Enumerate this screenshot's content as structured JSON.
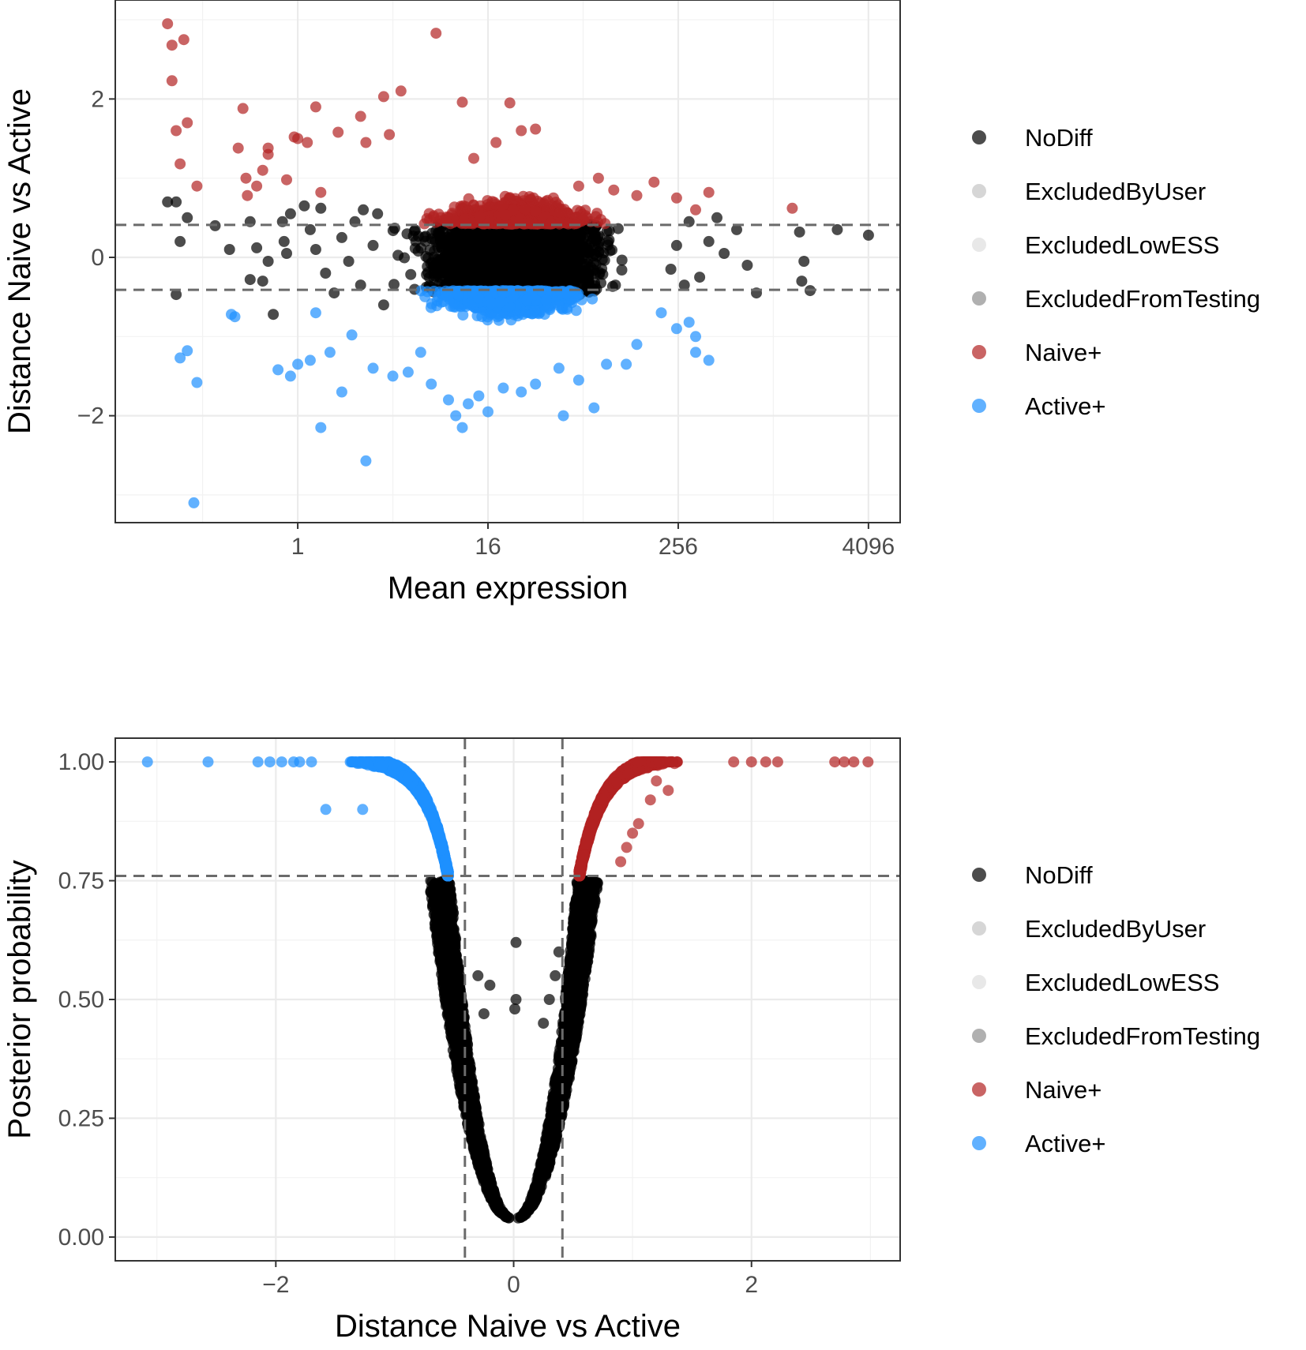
{
  "chart_data": [
    {
      "type": "scatter",
      "id": "ma-plot",
      "xlabel": "Mean expression",
      "ylabel": "Distance Naive vs Active",
      "x_scale": "log2",
      "xlim": [
        0.07,
        6500
      ],
      "ylim": [
        -3.35,
        3.25
      ],
      "x_ticks": [
        1,
        16,
        256,
        4096
      ],
      "x_tick_labels": [
        "1",
        "16",
        "256",
        "4096"
      ],
      "y_ticks": [
        -2,
        0,
        2
      ],
      "y_tick_labels": [
        "−2",
        "0",
        "2"
      ],
      "threshold_y": [
        0.41,
        -0.41
      ],
      "legend": [
        {
          "label": "NoDiff",
          "color": "#000000"
        },
        {
          "label": "ExcludedByUser",
          "color": "#c4c4c4"
        },
        {
          "label": "ExcludedLowESS",
          "color": "#dedede"
        },
        {
          "label": "ExcludedFromTesting",
          "color": "#8f8f8f"
        },
        {
          "label": "Naive+",
          "color": "#b22222"
        },
        {
          "label": "Active+",
          "color": "#1e90ff"
        }
      ],
      "series": [
        {
          "name": "NoDiff",
          "color": "#000000",
          "points": [
            [
              0.15,
              0.7
            ],
            [
              0.17,
              0.7
            ],
            [
              0.2,
              0.5
            ],
            [
              0.18,
              0.2
            ],
            [
              0.17,
              -0.47
            ],
            [
              0.3,
              0.4
            ],
            [
              0.37,
              0.1
            ],
            [
              0.5,
              0.45
            ],
            [
              0.55,
              0.12
            ],
            [
              0.5,
              -0.28
            ],
            [
              0.6,
              -0.3
            ],
            [
              0.65,
              -0.05
            ],
            [
              0.7,
              -0.72
            ],
            [
              0.8,
              0.45
            ],
            [
              0.82,
              0.2
            ],
            [
              0.85,
              0.05
            ],
            [
              0.9,
              0.55
            ],
            [
              1.1,
              0.65
            ],
            [
              1.2,
              0.35
            ],
            [
              1.3,
              0.1
            ],
            [
              1.4,
              0.62
            ],
            [
              1.5,
              -0.2
            ],
            [
              1.7,
              -0.45
            ],
            [
              1.9,
              0.25
            ],
            [
              2.1,
              -0.05
            ],
            [
              2.3,
              0.45
            ],
            [
              2.5,
              -0.35
            ],
            [
              2.6,
              0.6
            ],
            [
              3.2,
              0.55
            ],
            [
              3.5,
              -0.6
            ],
            [
              3.0,
              0.15
            ],
            [
              4096,
              0.28
            ],
            [
              2600,
              0.35
            ],
            [
              1500,
              0.32
            ],
            [
              1600,
              -0.05
            ],
            [
              1550,
              -0.3
            ],
            [
              1750,
              -0.42
            ],
            [
              800,
              -0.45
            ],
            [
              700,
              -0.1
            ],
            [
              600,
              0.35
            ],
            [
              450,
              0.5
            ],
            [
              400,
              0.2
            ],
            [
              350,
              -0.25
            ],
            [
              500,
              0.05
            ],
            [
              300,
              0.45
            ],
            [
              280,
              -0.35
            ],
            [
              250,
              0.15
            ],
            [
              230,
              -0.15
            ]
          ]
        },
        {
          "name": "Naive+",
          "color": "#b22222",
          "points": [
            [
              0.15,
              2.95
            ],
            [
              0.16,
              2.68
            ],
            [
              0.19,
              2.75
            ],
            [
              0.16,
              2.23
            ],
            [
              0.17,
              1.6
            ],
            [
              0.2,
              1.7
            ],
            [
              0.18,
              1.18
            ],
            [
              0.23,
              0.9
            ],
            [
              0.45,
              1.88
            ],
            [
              0.42,
              1.38
            ],
            [
              0.47,
              1.0
            ],
            [
              0.48,
              0.78
            ],
            [
              0.55,
              0.9
            ],
            [
              0.6,
              1.1
            ],
            [
              0.65,
              1.38
            ],
            [
              0.65,
              1.3
            ],
            [
              0.85,
              0.98
            ],
            [
              0.95,
              1.52
            ],
            [
              1.0,
              1.5
            ],
            [
              1.15,
              1.45
            ],
            [
              1.3,
              1.9
            ],
            [
              1.4,
              0.82
            ],
            [
              1.8,
              1.58
            ],
            [
              2.5,
              1.78
            ],
            [
              2.7,
              1.45
            ],
            [
              3.5,
              2.03
            ],
            [
              4.5,
              2.1
            ],
            [
              3.8,
              1.55
            ],
            [
              7.5,
              2.83
            ],
            [
              11,
              1.96
            ],
            [
              22,
              1.95
            ],
            [
              26,
              1.6
            ],
            [
              32,
              1.62
            ],
            [
              18,
              1.45
            ],
            [
              13,
              1.25
            ],
            [
              80,
              1.0
            ],
            [
              100,
              0.85
            ],
            [
              140,
              0.78
            ],
            [
              180,
              0.95
            ],
            [
              250,
              0.75
            ],
            [
              330,
              0.6
            ],
            [
              400,
              0.82
            ],
            [
              1350,
              0.62
            ],
            [
              60,
              0.9
            ]
          ]
        },
        {
          "name": "Active+",
          "color": "#1e90ff",
          "points": [
            [
              0.2,
              -1.18
            ],
            [
              0.18,
              -1.27
            ],
            [
              0.23,
              -1.58
            ],
            [
              0.22,
              -3.1
            ],
            [
              0.38,
              -0.72
            ],
            [
              0.4,
              -0.75
            ],
            [
              0.75,
              -1.42
            ],
            [
              0.9,
              -1.5
            ],
            [
              1.0,
              -1.35
            ],
            [
              1.2,
              -1.3
            ],
            [
              1.3,
              -0.7
            ],
            [
              1.4,
              -2.15
            ],
            [
              1.6,
              -1.2
            ],
            [
              1.9,
              -1.7
            ],
            [
              2.2,
              -0.98
            ],
            [
              2.7,
              -2.57
            ],
            [
              3.0,
              -1.4
            ],
            [
              4.0,
              -1.5
            ],
            [
              5.0,
              -1.45
            ],
            [
              6.0,
              -1.2
            ],
            [
              7.0,
              -1.6
            ],
            [
              9.0,
              -1.8
            ],
            [
              10,
              -2.0
            ],
            [
              11,
              -2.15
            ],
            [
              12,
              -1.85
            ],
            [
              14,
              -1.75
            ],
            [
              16,
              -1.95
            ],
            [
              20,
              -1.65
            ],
            [
              26,
              -1.7
            ],
            [
              32,
              -1.6
            ],
            [
              45,
              -1.4
            ],
            [
              48,
              -2.0
            ],
            [
              60,
              -1.55
            ],
            [
              75,
              -1.9
            ],
            [
              90,
              -1.35
            ],
            [
              120,
              -1.35
            ],
            [
              140,
              -1.1
            ],
            [
              300,
              -0.82
            ],
            [
              330,
              -1.0
            ],
            [
              330,
              -1.2
            ],
            [
              400,
              -1.3
            ],
            [
              250,
              -0.9
            ],
            [
              200,
              -0.7
            ]
          ]
        }
      ],
      "dense_clouds": [
        {
          "series": "NoDiff",
          "color": "#000000",
          "x_range": [
            3.0,
            180
          ],
          "y_range": [
            -0.62,
            0.6
          ]
        },
        {
          "series": "Naive+",
          "color": "#b22222",
          "x_range": [
            4.5,
            120
          ],
          "y_range": [
            0.45,
            1.05
          ]
        },
        {
          "series": "Active+",
          "color": "#1e90ff",
          "x_range": [
            4.5,
            100
          ],
          "y_range": [
            -1.05,
            -0.45
          ]
        }
      ]
    },
    {
      "type": "scatter",
      "id": "volcano-plot",
      "xlabel": "Distance Naive vs Active",
      "ylabel": "Posterior probability",
      "xlim": [
        -3.35,
        3.25
      ],
      "ylim": [
        -0.05,
        1.05
      ],
      "x_ticks": [
        -2,
        0,
        2
      ],
      "x_tick_labels": [
        "−2",
        "0",
        "2"
      ],
      "y_ticks": [
        0,
        0.25,
        0.5,
        0.75,
        1.0
      ],
      "y_tick_labels": [
        "0.00",
        "0.25",
        "0.50",
        "0.75",
        "1.00"
      ],
      "threshold_x": [
        -0.41,
        0.41
      ],
      "threshold_y": [
        0.76
      ],
      "legend": [
        {
          "label": "NoDiff",
          "color": "#000000"
        },
        {
          "label": "ExcludedByUser",
          "color": "#c4c4c4"
        },
        {
          "label": "ExcludedLowESS",
          "color": "#dedede"
        },
        {
          "label": "ExcludedFromTesting",
          "color": "#8f8f8f"
        },
        {
          "label": "Naive+",
          "color": "#b22222"
        },
        {
          "label": "Active+",
          "color": "#1e90ff"
        }
      ],
      "series": [
        {
          "name": "NoDiff",
          "color": "#000000",
          "points": [
            [
              0.02,
              0.62
            ],
            [
              -0.3,
              0.55
            ],
            [
              -0.2,
              0.53
            ],
            [
              0.02,
              0.5
            ],
            [
              0.01,
              0.48
            ],
            [
              -0.25,
              0.47
            ],
            [
              0.25,
              0.45
            ],
            [
              0.3,
              0.5
            ],
            [
              0.35,
              0.55
            ],
            [
              0.38,
              0.6
            ],
            [
              -0.45,
              0.52
            ]
          ]
        },
        {
          "name": "Naive+",
          "color": "#b22222",
          "points": [
            [
              2.7,
              1.0
            ],
            [
              2.78,
              1.0
            ],
            [
              2.86,
              1.0
            ],
            [
              2.98,
              1.0
            ],
            [
              2.22,
              1.0
            ],
            [
              2.12,
              1.0
            ],
            [
              2.0,
              1.0
            ],
            [
              1.85,
              1.0
            ],
            [
              1.15,
              0.92
            ],
            [
              1.2,
              0.96
            ],
            [
              1.3,
              0.94
            ],
            [
              1.0,
              0.85
            ],
            [
              1.05,
              0.87
            ],
            [
              0.95,
              0.82
            ],
            [
              0.9,
              0.79
            ]
          ]
        },
        {
          "name": "Active+",
          "color": "#1e90ff",
          "points": [
            [
              -3.08,
              1.0
            ],
            [
              -2.57,
              1.0
            ],
            [
              -2.15,
              1.0
            ],
            [
              -2.05,
              1.0
            ],
            [
              -1.95,
              1.0
            ],
            [
              -1.85,
              1.0
            ],
            [
              -1.8,
              1.0
            ],
            [
              -1.7,
              1.0
            ],
            [
              -1.58,
              0.9
            ],
            [
              -1.27,
              0.9
            ]
          ]
        }
      ],
      "v_shape": {
        "nodiff_apex": [
          0.0,
          0.04
        ],
        "nodiff_top": 0.75,
        "nodiff_half_width_top": 0.68,
        "naive_x_range": [
          0.55,
          1.4
        ],
        "active_x_range": [
          -1.4,
          -0.55
        ],
        "sig_y_range": [
          0.76,
          1.0
        ]
      }
    }
  ]
}
